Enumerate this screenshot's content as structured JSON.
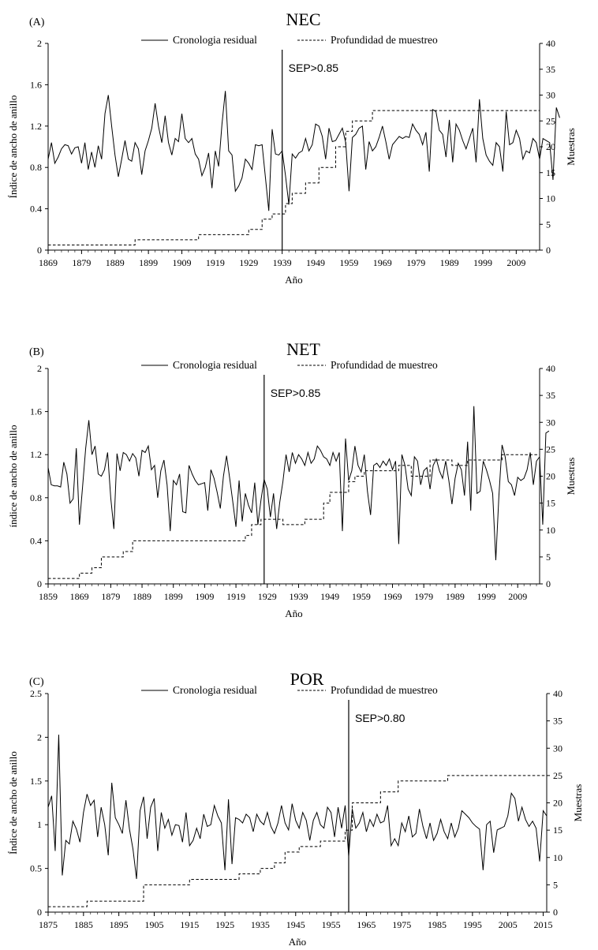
{
  "figure": {
    "legend": {
      "residual": "Cronologia residual",
      "depth": "Profundidad de muestreo"
    },
    "xlabel": "Año",
    "ylabel_right": "Muestras"
  },
  "chart_data": [
    {
      "type": "line",
      "panel_label": "(A)",
      "title": "NEC",
      "ylabel": "Índice de ancho de anillo",
      "xlabel": "Año",
      "xlim": [
        1869,
        2016
      ],
      "xticks": [
        "1869",
        "1879",
        "1889",
        "1899",
        "1909",
        "1919",
        "1929",
        "1939",
        "1949",
        "1959",
        "1969",
        "1979",
        "1989",
        "1999",
        "2009"
      ],
      "ylim": [
        0,
        2
      ],
      "yticks": [
        "0",
        "0.4",
        "0.8",
        "1.2",
        "1.6",
        "2"
      ],
      "y2lim": [
        0,
        40
      ],
      "y2ticks": [
        "0",
        "5",
        "10",
        "15",
        "20",
        "25",
        "30",
        "35",
        "40"
      ],
      "sep_year": 1939,
      "sep_label": "SEP>0.85",
      "series": [
        {
          "name": "Cronologia residual",
          "style": "solid",
          "start_year": 1869,
          "values": [
            0.88,
            1.04,
            0.84,
            0.9,
            0.98,
            1.02,
            1.01,
            0.93,
            0.99,
            1.0,
            0.84,
            1.04,
            0.78,
            0.95,
            0.8,
            1.01,
            0.88,
            1.32,
            1.5,
            1.2,
            0.92,
            0.71,
            0.88,
            1.06,
            0.88,
            0.86,
            1.04,
            0.98,
            0.73,
            0.96,
            1.06,
            1.18,
            1.42,
            1.2,
            1.04,
            1.3,
            1.04,
            0.92,
            1.08,
            1.05,
            1.32,
            1.08,
            1.04,
            1.08,
            0.93,
            0.88,
            0.72,
            0.8,
            0.94,
            0.6,
            0.96,
            0.81,
            1.22,
            1.54,
            0.96,
            0.92,
            0.57,
            0.62,
            0.7,
            0.88,
            0.84,
            0.78,
            1.02,
            1.01,
            1.02,
            0.7,
            0.38,
            1.17,
            0.93,
            0.92,
            0.96,
            0.72,
            0.44,
            0.93,
            0.89,
            0.94,
            0.96,
            1.08,
            0.96,
            1.02,
            1.22,
            1.2,
            1.1,
            0.88,
            1.18,
            1.05,
            1.06,
            1.12,
            1.18,
            1.04,
            0.57,
            1.09,
            1.12,
            1.18,
            1.2,
            0.78,
            1.05,
            0.96,
            1.0,
            1.09,
            1.2,
            1.05,
            0.88,
            1.02,
            1.06,
            1.1,
            1.08,
            1.1,
            1.09,
            1.22,
            1.16,
            1.12,
            1.02,
            1.14,
            0.76,
            1.36,
            1.34,
            1.16,
            1.12,
            0.9,
            1.26,
            0.85,
            1.22,
            1.16,
            1.06,
            0.98,
            1.08,
            1.18,
            0.85,
            1.46,
            1.08,
            0.92,
            0.86,
            0.82,
            1.04,
            1.0,
            0.76,
            1.34,
            1.02,
            1.04,
            1.16,
            1.08,
            0.88,
            0.96,
            0.94,
            1.08,
            1.04,
            0.88,
            1.08,
            1.06,
            1.04,
            0.68,
            1.38,
            1.28
          ]
        },
        {
          "name": "Profundidad de muestreo",
          "style": "dashed",
          "axis": "right",
          "steps": [
            [
              1869,
              1
            ],
            [
              1895,
              2
            ],
            [
              1914,
              3
            ],
            [
              1929,
              4
            ],
            [
              1933,
              6
            ],
            [
              1936,
              7
            ],
            [
              1940,
              9
            ],
            [
              1942,
              11
            ],
            [
              1946,
              13
            ],
            [
              1950,
              16
            ],
            [
              1955,
              20
            ],
            [
              1958,
              23
            ],
            [
              1960,
              25
            ],
            [
              1966,
              27
            ],
            [
              2016,
              27
            ]
          ]
        }
      ]
    },
    {
      "type": "line",
      "panel_label": "(B)",
      "title": "NET",
      "ylabel": "índice de ancho de anillo",
      "xlabel": "Año",
      "xlim": [
        1859,
        2016
      ],
      "xticks": [
        "1859",
        "1869",
        "1879",
        "1889",
        "1899",
        "1909",
        "1919",
        "1929",
        "1939",
        "1949",
        "1959",
        "1969",
        "1979",
        "1989",
        "1999",
        "2009"
      ],
      "ylim": [
        0,
        2
      ],
      "yticks": [
        "0",
        "0.4",
        "0.8",
        "1.2",
        "1.6",
        "2"
      ],
      "y2lim": [
        0,
        40
      ],
      "y2ticks": [
        "0",
        "5",
        "10",
        "15",
        "20",
        "25",
        "30",
        "35",
        "40"
      ],
      "sep_year": 1928,
      "sep_label": "SEP>0.85",
      "series": [
        {
          "name": "Cronologia residual",
          "style": "solid",
          "start_year": 1859,
          "values": [
            1.08,
            0.92,
            0.91,
            0.91,
            0.9,
            1.13,
            1.02,
            0.75,
            0.79,
            1.26,
            0.55,
            0.9,
            1.26,
            1.52,
            1.2,
            1.28,
            1.02,
            1.0,
            1.06,
            1.22,
            0.8,
            0.51,
            1.21,
            1.05,
            1.22,
            1.2,
            1.14,
            1.21,
            1.17,
            1.0,
            1.24,
            1.22,
            1.28,
            1.06,
            1.1,
            0.8,
            1.05,
            1.15,
            0.92,
            0.49,
            0.96,
            0.92,
            1.02,
            0.67,
            0.66,
            1.1,
            1.02,
            0.96,
            0.92,
            0.93,
            0.94,
            0.68,
            1.06,
            0.98,
            0.85,
            0.7,
            1.0,
            1.19,
            0.98,
            0.76,
            0.53,
            0.96,
            0.58,
            0.84,
            0.73,
            0.66,
            0.94,
            0.55,
            0.78,
            0.97,
            0.88,
            0.62,
            0.84,
            0.51,
            0.76,
            0.95,
            1.2,
            1.04,
            1.22,
            1.12,
            1.2,
            1.16,
            1.1,
            1.22,
            1.12,
            1.16,
            1.28,
            1.24,
            1.18,
            1.16,
            1.1,
            1.22,
            1.14,
            1.22,
            0.49,
            1.35,
            0.96,
            1.05,
            1.28,
            1.1,
            1.04,
            1.2,
            0.86,
            0.64,
            1.1,
            1.12,
            1.08,
            1.14,
            1.1,
            1.16,
            1.06,
            1.14,
            0.37,
            1.2,
            1.1,
            0.88,
            0.82,
            1.18,
            1.14,
            0.92,
            1.05,
            1.08,
            0.88,
            1.1,
            1.16,
            1.05,
            0.98,
            1.14,
            0.96,
            0.74,
            0.98,
            1.12,
            1.06,
            0.82,
            1.32,
            0.68,
            1.65,
            0.84,
            0.86,
            1.14,
            1.06,
            0.96,
            0.84,
            0.22,
            0.82,
            1.29,
            1.18,
            0.95,
            0.92,
            0.82,
            0.99,
            0.96,
            0.98,
            1.06,
            1.22,
            0.92,
            1.14,
            1.18,
            0.55,
            1.4,
            1.42
          ]
        },
        {
          "name": "Profundidad de muestreo",
          "style": "dashed",
          "axis": "right",
          "steps": [
            [
              1859,
              1
            ],
            [
              1869,
              2
            ],
            [
              1873,
              3
            ],
            [
              1876,
              5
            ],
            [
              1883,
              6
            ],
            [
              1886,
              8
            ],
            [
              1922,
              9
            ],
            [
              1924,
              11
            ],
            [
              1927,
              12
            ],
            [
              1934,
              11
            ],
            [
              1941,
              12
            ],
            [
              1947,
              15
            ],
            [
              1949,
              17
            ],
            [
              1955,
              19
            ],
            [
              1957,
              20
            ],
            [
              1960,
              21
            ],
            [
              1971,
              22
            ],
            [
              1975,
              20
            ],
            [
              1981,
              23
            ],
            [
              1988,
              22
            ],
            [
              1993,
              23
            ],
            [
              2001,
              23
            ],
            [
              2004,
              24
            ],
            [
              2014,
              24
            ],
            [
              2016,
              26
            ]
          ]
        }
      ]
    },
    {
      "type": "line",
      "panel_label": "(C)",
      "title": "POR",
      "ylabel": "Índice de ancho de anillo",
      "xlabel": "Año",
      "xlim": [
        1875,
        2016
      ],
      "xticks": [
        "1875",
        "1885",
        "1895",
        "1905",
        "1915",
        "1925",
        "1935",
        "1945",
        "1955",
        "1965",
        "1975",
        "1985",
        "1995",
        "2005",
        "2015"
      ],
      "ylim": [
        0,
        2.5
      ],
      "yticks": [
        "0",
        "0.5",
        "1",
        "1.5",
        "2",
        "2.5"
      ],
      "y2lim": [
        0,
        40
      ],
      "y2ticks": [
        "0",
        "5",
        "10",
        "15",
        "20",
        "25",
        "30",
        "35",
        "40"
      ],
      "sep_year": 1960,
      "sep_label": "SEP>0.80",
      "series": [
        {
          "name": "Cronologia residual",
          "style": "solid",
          "start_year": 1875,
          "values": [
            1.2,
            1.33,
            0.7,
            2.03,
            0.42,
            0.82,
            0.78,
            1.04,
            0.95,
            0.8,
            1.14,
            1.35,
            1.22,
            1.28,
            0.86,
            1.2,
            1.0,
            0.65,
            1.48,
            1.08,
            1.0,
            0.9,
            1.28,
            0.95,
            0.72,
            0.38,
            1.16,
            1.32,
            0.84,
            1.2,
            1.3,
            0.7,
            1.14,
            0.96,
            1.06,
            0.88,
            1.0,
            0.99,
            0.8,
            1.14,
            0.76,
            0.82,
            0.96,
            0.84,
            1.12,
            0.98,
            1.0,
            1.22,
            1.1,
            1.02,
            0.48,
            1.29,
            0.55,
            1.08,
            1.06,
            1.02,
            1.12,
            1.08,
            0.92,
            1.12,
            1.04,
            1.0,
            1.14,
            0.98,
            0.9,
            1.02,
            1.22,
            1.02,
            0.94,
            1.24,
            1.05,
            0.96,
            1.14,
            1.05,
            0.82,
            1.05,
            1.14,
            1.0,
            0.96,
            1.2,
            1.14,
            0.86,
            1.2,
            0.96,
            1.22,
            0.64,
            1.18,
            0.96,
            1.02,
            1.14,
            0.92,
            1.06,
            0.98,
            1.12,
            1.02,
            1.04,
            1.22,
            0.76,
            0.84,
            0.76,
            1.02,
            0.92,
            1.1,
            0.86,
            0.9,
            1.18,
            0.98,
            0.84,
            1.02,
            0.82,
            0.9,
            1.06,
            0.92,
            0.84,
            1.02,
            0.86,
            0.96,
            1.16,
            1.12,
            1.08,
            1.02,
            0.98,
            0.95,
            0.48,
            1.0,
            1.04,
            0.68,
            0.94,
            0.96,
            0.98,
            1.1,
            1.36,
            1.3,
            1.04,
            1.2,
            1.06,
            0.98,
            1.04,
            0.96,
            0.58,
            1.16,
            1.1
          ]
        },
        {
          "name": "Profundidad de muestreo",
          "style": "dashed",
          "axis": "right",
          "steps": [
            [
              1875,
              1
            ],
            [
              1886,
              2
            ],
            [
              1902,
              5
            ],
            [
              1915,
              6
            ],
            [
              1929,
              7
            ],
            [
              1935,
              8
            ],
            [
              1939,
              9
            ],
            [
              1942,
              11
            ],
            [
              1946,
              12
            ],
            [
              1952,
              13
            ],
            [
              1959,
              15
            ],
            [
              1961,
              20
            ],
            [
              1969,
              22
            ],
            [
              1974,
              24
            ],
            [
              1988,
              25
            ],
            [
              2016,
              25
            ]
          ]
        }
      ]
    }
  ]
}
